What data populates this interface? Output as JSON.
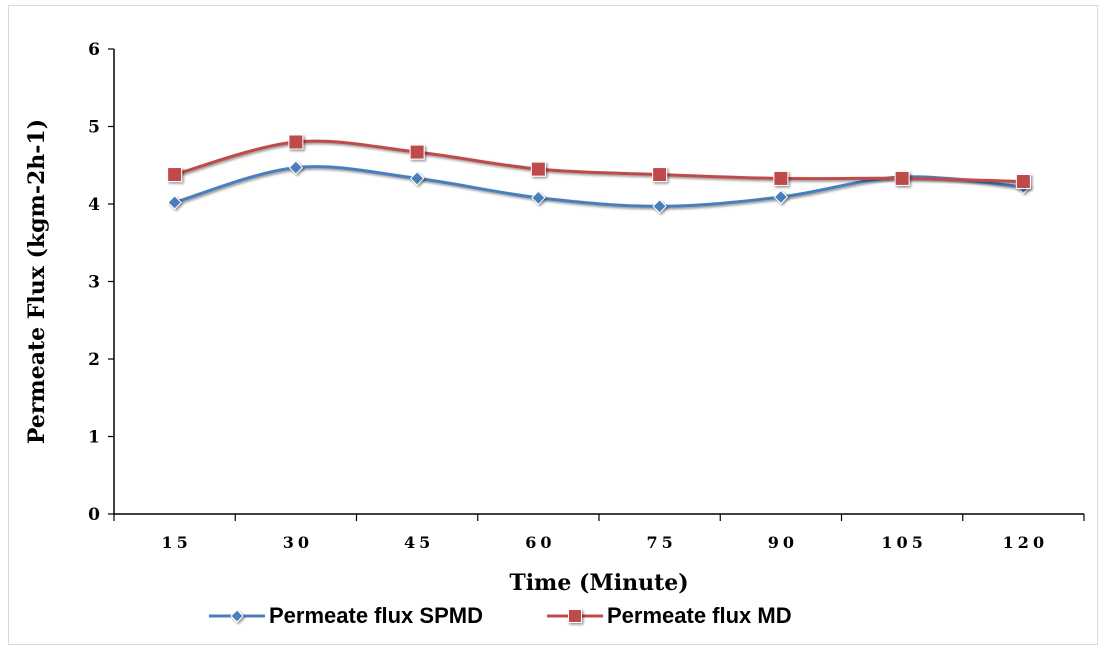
{
  "chart_data": {
    "type": "line",
    "title": "",
    "xlabel": "Time (Minute)",
    "ylabel": "Permeate Flux (kgm-2h-1)",
    "categories": [
      "15",
      "30",
      "45",
      "60",
      "75",
      "90",
      "105",
      "120"
    ],
    "ylim": [
      0,
      6
    ],
    "yticks": [
      0,
      1,
      2,
      3,
      4,
      5,
      6
    ],
    "grid": false,
    "smooth": true,
    "legend_position": "bottom",
    "series": [
      {
        "name": "Permeate flux SPMD",
        "values": [
          4.02,
          4.47,
          4.33,
          4.08,
          3.97,
          4.09,
          4.35,
          4.22
        ],
        "color": "#4a7ebb",
        "marker": "diamond"
      },
      {
        "name": "Permeate flux MD",
        "values": [
          4.38,
          4.8,
          4.67,
          4.45,
          4.38,
          4.33,
          4.33,
          4.29
        ],
        "color": "#be4b48",
        "marker": "square"
      }
    ]
  }
}
